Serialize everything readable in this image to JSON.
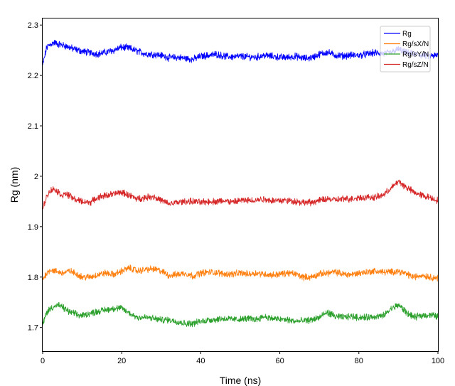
{
  "chart_data": {
    "type": "line",
    "title": "",
    "xlabel": "Time (ns)",
    "ylabel": "Rg (nm)",
    "xlim": [
      0,
      100
    ],
    "ylim": [
      1.653,
      2.313
    ],
    "xticks": [
      0,
      20,
      40,
      60,
      80,
      100
    ],
    "xtick_labels": [
      "0",
      "20",
      "40",
      "60",
      "80",
      "100"
    ],
    "yticks": [
      1.7,
      1.8,
      1.9,
      2.0,
      2.1,
      2.2,
      2.3
    ],
    "ytick_labels": [
      "1.7",
      "1.8",
      "1.9",
      "2",
      "2.1",
      "2.2",
      "2.3"
    ],
    "grid": false,
    "legend_position": "top-right",
    "x": [
      0,
      1,
      2,
      3,
      4,
      5,
      6,
      7,
      8,
      9,
      10,
      12,
      14,
      16,
      18,
      20,
      22,
      24,
      26,
      28,
      30,
      32,
      34,
      36,
      38,
      40,
      42,
      44,
      46,
      48,
      50,
      52,
      54,
      56,
      58,
      60,
      62,
      64,
      66,
      68,
      70,
      72,
      74,
      76,
      78,
      80,
      82,
      84,
      86,
      88,
      90,
      92,
      94,
      96,
      98,
      100
    ],
    "series": [
      {
        "name": "Rg",
        "color": "#0000ff",
        "values": [
          2.22,
          2.255,
          2.262,
          2.265,
          2.262,
          2.26,
          2.258,
          2.255,
          2.252,
          2.25,
          2.248,
          2.245,
          2.243,
          2.246,
          2.25,
          2.256,
          2.254,
          2.248,
          2.243,
          2.242,
          2.24,
          2.235,
          2.236,
          2.234,
          2.232,
          2.238,
          2.24,
          2.242,
          2.238,
          2.237,
          2.238,
          2.237,
          2.236,
          2.24,
          2.238,
          2.236,
          2.236,
          2.238,
          2.234,
          2.235,
          2.242,
          2.246,
          2.24,
          2.239,
          2.24,
          2.24,
          2.242,
          2.245,
          2.243,
          2.245,
          2.252,
          2.245,
          2.242,
          2.24,
          2.238,
          2.24
        ]
      },
      {
        "name": "Rg/sX/N",
        "color": "#ff7f0e",
        "values": [
          1.795,
          1.808,
          1.815,
          1.812,
          1.81,
          1.808,
          1.81,
          1.812,
          1.808,
          1.805,
          1.8,
          1.8,
          1.805,
          1.808,
          1.805,
          1.812,
          1.818,
          1.812,
          1.815,
          1.816,
          1.812,
          1.803,
          1.805,
          1.808,
          1.802,
          1.808,
          1.81,
          1.809,
          1.806,
          1.806,
          1.808,
          1.806,
          1.808,
          1.806,
          1.804,
          1.806,
          1.808,
          1.806,
          1.8,
          1.8,
          1.806,
          1.808,
          1.81,
          1.806,
          1.805,
          1.808,
          1.81,
          1.812,
          1.81,
          1.81,
          1.812,
          1.806,
          1.8,
          1.804,
          1.8,
          1.798
        ]
      },
      {
        "name": "Rg/sY/N",
        "color": "#2ca02c",
        "values": [
          1.705,
          1.73,
          1.738,
          1.742,
          1.744,
          1.74,
          1.735,
          1.73,
          1.728,
          1.724,
          1.724,
          1.728,
          1.732,
          1.735,
          1.738,
          1.738,
          1.728,
          1.72,
          1.72,
          1.718,
          1.715,
          1.715,
          1.712,
          1.708,
          1.708,
          1.712,
          1.715,
          1.716,
          1.718,
          1.716,
          1.716,
          1.718,
          1.716,
          1.722,
          1.718,
          1.716,
          1.715,
          1.712,
          1.713,
          1.715,
          1.72,
          1.73,
          1.722,
          1.72,
          1.722,
          1.72,
          1.72,
          1.722,
          1.722,
          1.736,
          1.745,
          1.73,
          1.72,
          1.724,
          1.725,
          1.722
        ]
      },
      {
        "name": "Rg/sZ/N",
        "color": "#d62728",
        "values": [
          1.935,
          1.96,
          1.972,
          1.975,
          1.968,
          1.962,
          1.965,
          1.96,
          1.955,
          1.952,
          1.95,
          1.948,
          1.958,
          1.962,
          1.965,
          1.968,
          1.962,
          1.955,
          1.958,
          1.96,
          1.952,
          1.945,
          1.948,
          1.95,
          1.95,
          1.948,
          1.95,
          1.95,
          1.952,
          1.948,
          1.952,
          1.952,
          1.953,
          1.955,
          1.952,
          1.952,
          1.952,
          1.95,
          1.948,
          1.948,
          1.952,
          1.955,
          1.953,
          1.955,
          1.955,
          1.958,
          1.958,
          1.958,
          1.962,
          1.975,
          1.99,
          1.978,
          1.968,
          1.962,
          1.958,
          1.952
        ]
      }
    ]
  }
}
